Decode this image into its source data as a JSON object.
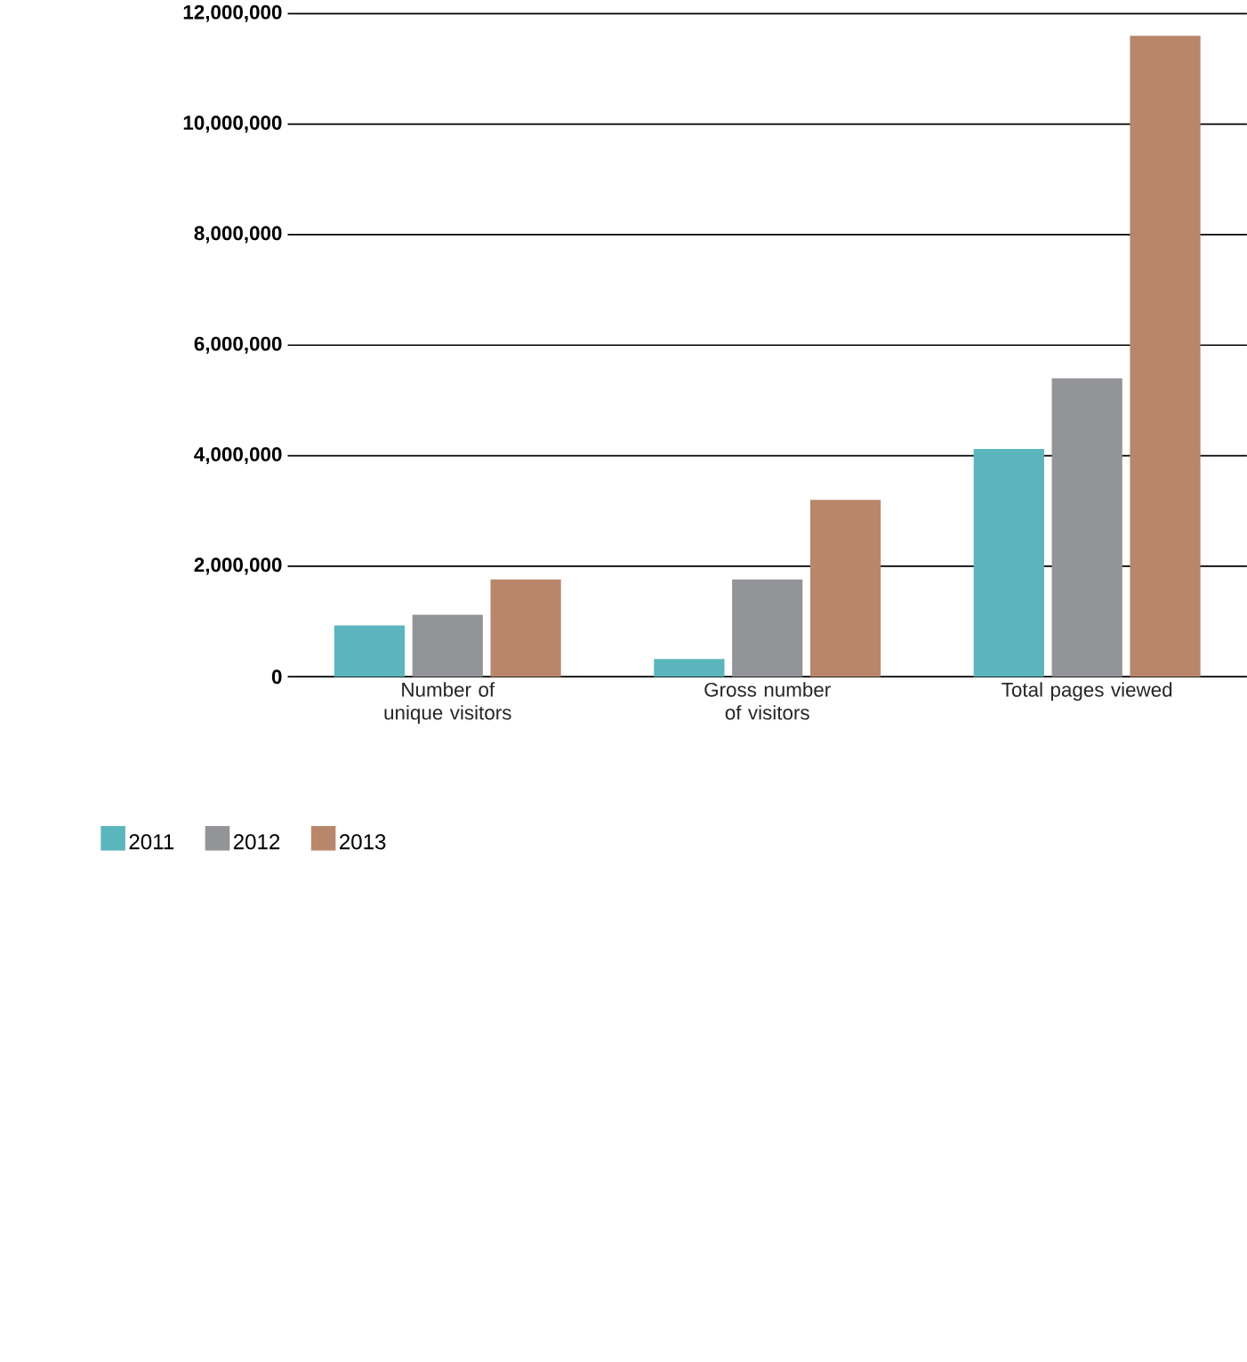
{
  "chart_data": {
    "type": "bar",
    "categories": [
      "Number of unique visitors",
      "Gross number of visitors",
      "Total pages viewed"
    ],
    "series": [
      {
        "name": "2011",
        "color": "#5bb5bd",
        "values": [
          930000,
          320000,
          4120000
        ]
      },
      {
        "name": "2012",
        "color": "#939497",
        "values": [
          1120000,
          1760000,
          5400000
        ]
      },
      {
        "name": "2013",
        "color": "#b8876b",
        "values": [
          1760000,
          3200000,
          11600000
        ]
      }
    ],
    "ylim": [
      0,
      12000000
    ],
    "yticks": [
      {
        "value": 0,
        "label": "0"
      },
      {
        "value": 2000000,
        "label": "2,000,000"
      },
      {
        "value": 4000000,
        "label": "4,000,000"
      },
      {
        "value": 6000000,
        "label": "6,000,000"
      },
      {
        "value": 8000000,
        "label": "8,000,000"
      },
      {
        "value": 10000000,
        "label": "10,000,000"
      },
      {
        "value": 12000000,
        "label": "12,000,000"
      }
    ],
    "grid": "y",
    "legend": "bottom left"
  }
}
